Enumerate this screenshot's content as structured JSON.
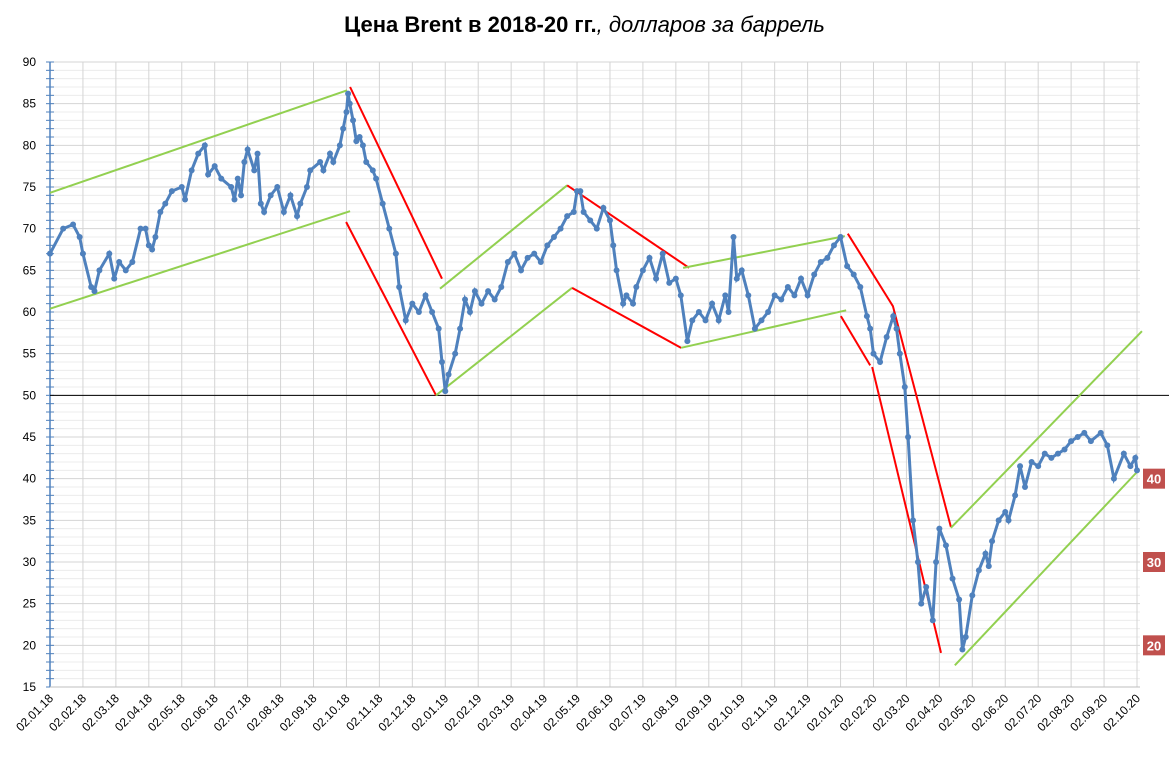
{
  "chart_data": {
    "type": "line",
    "title_bold": "Цена Brent в 2018-20 гг.",
    "title_italic": ", долларов за баррель",
    "xlabel": "",
    "ylabel": "",
    "ylim": [
      15,
      90
    ],
    "yticks": [
      15,
      20,
      25,
      30,
      35,
      40,
      45,
      50,
      55,
      60,
      65,
      70,
      75,
      80,
      85,
      90
    ],
    "x_tick_labels": [
      "02.01.18",
      "02.02.18",
      "02.03.18",
      "02.04.18",
      "02.05.18",
      "02.06.18",
      "02.07.18",
      "02.08.18",
      "02.09.18",
      "02.10.18",
      "02.11.18",
      "02.12.18",
      "02.01.19",
      "02.02.19",
      "02.03.19",
      "02.04.19",
      "02.05.19",
      "02.06.19",
      "02.07.19",
      "02.08.19",
      "02.09.19",
      "02.10.19",
      "02.11.19",
      "02.12.19",
      "02.01.20",
      "02.02.20",
      "02.03.20",
      "02.04.20",
      "02.05.20",
      "02.06.20",
      "02.07.20",
      "02.08.20",
      "02.09.20",
      "02.10.20"
    ],
    "x_unit": "months since 02.01.18",
    "grid": true,
    "series": [
      {
        "name": "Brent",
        "color": "#4f81bd",
        "points": [
          [
            0,
            67
          ],
          [
            0.4,
            70
          ],
          [
            0.7,
            70.5
          ],
          [
            0.9,
            69
          ],
          [
            1.0,
            67
          ],
          [
            1.25,
            63
          ],
          [
            1.35,
            62.5
          ],
          [
            1.5,
            65
          ],
          [
            1.8,
            67
          ],
          [
            1.95,
            64
          ],
          [
            2.1,
            66
          ],
          [
            2.3,
            65
          ],
          [
            2.5,
            66
          ],
          [
            2.75,
            70
          ],
          [
            2.9,
            70
          ],
          [
            3.0,
            68
          ],
          [
            3.1,
            67.5
          ],
          [
            3.2,
            69
          ],
          [
            3.35,
            72
          ],
          [
            3.5,
            73
          ],
          [
            3.7,
            74.5
          ],
          [
            4.0,
            75
          ],
          [
            4.1,
            73.5
          ],
          [
            4.3,
            77
          ],
          [
            4.5,
            79
          ],
          [
            4.7,
            80
          ],
          [
            4.8,
            76.5
          ],
          [
            5.0,
            77.5
          ],
          [
            5.2,
            76
          ],
          [
            5.5,
            75
          ],
          [
            5.6,
            73.5
          ],
          [
            5.7,
            76
          ],
          [
            5.8,
            74
          ],
          [
            5.9,
            78
          ],
          [
            6.0,
            79.5
          ],
          [
            6.2,
            77
          ],
          [
            6.3,
            79
          ],
          [
            6.4,
            73
          ],
          [
            6.5,
            72
          ],
          [
            6.7,
            74
          ],
          [
            6.9,
            75
          ],
          [
            7.1,
            72
          ],
          [
            7.3,
            74
          ],
          [
            7.5,
            71.5
          ],
          [
            7.6,
            73
          ],
          [
            7.8,
            75
          ],
          [
            7.9,
            77
          ],
          [
            8.2,
            78
          ],
          [
            8.3,
            77
          ],
          [
            8.5,
            79
          ],
          [
            8.6,
            78
          ],
          [
            8.8,
            80
          ],
          [
            8.9,
            82
          ],
          [
            9.0,
            84
          ],
          [
            9.05,
            86.2
          ],
          [
            9.1,
            85
          ],
          [
            9.2,
            83
          ],
          [
            9.3,
            80.5
          ],
          [
            9.4,
            81
          ],
          [
            9.5,
            80
          ],
          [
            9.6,
            78
          ],
          [
            9.8,
            77
          ],
          [
            9.9,
            76
          ],
          [
            10.1,
            73
          ],
          [
            10.3,
            70
          ],
          [
            10.5,
            67
          ],
          [
            10.6,
            63
          ],
          [
            10.8,
            59
          ],
          [
            11.0,
            61
          ],
          [
            11.2,
            60
          ],
          [
            11.4,
            62
          ],
          [
            11.6,
            60
          ],
          [
            11.8,
            58
          ],
          [
            11.9,
            54
          ],
          [
            12.0,
            50.5
          ],
          [
            12.1,
            52.5
          ],
          [
            12.3,
            55
          ],
          [
            12.45,
            58
          ],
          [
            12.6,
            61.5
          ],
          [
            12.75,
            60
          ],
          [
            12.9,
            62.5
          ],
          [
            13.1,
            61
          ],
          [
            13.3,
            62.5
          ],
          [
            13.5,
            61.5
          ],
          [
            13.7,
            63
          ],
          [
            13.9,
            66
          ],
          [
            14.1,
            67
          ],
          [
            14.3,
            65
          ],
          [
            14.5,
            66.5
          ],
          [
            14.7,
            67
          ],
          [
            14.9,
            66
          ],
          [
            15.1,
            68
          ],
          [
            15.3,
            69
          ],
          [
            15.5,
            70
          ],
          [
            15.7,
            71.5
          ],
          [
            15.9,
            72
          ],
          [
            16.0,
            74.5
          ],
          [
            16.1,
            74.5
          ],
          [
            16.2,
            72
          ],
          [
            16.4,
            71
          ],
          [
            16.6,
            70
          ],
          [
            16.8,
            72.5
          ],
          [
            17.0,
            71
          ],
          [
            17.1,
            68
          ],
          [
            17.2,
            65
          ],
          [
            17.4,
            61
          ],
          [
            17.5,
            62
          ],
          [
            17.7,
            61
          ],
          [
            17.8,
            63
          ],
          [
            18.0,
            65
          ],
          [
            18.2,
            66.5
          ],
          [
            18.4,
            64
          ],
          [
            18.6,
            67
          ],
          [
            18.8,
            63.5
          ],
          [
            19.0,
            64
          ],
          [
            19.15,
            62
          ],
          [
            19.35,
            56.5
          ],
          [
            19.5,
            59
          ],
          [
            19.7,
            60
          ],
          [
            19.9,
            59
          ],
          [
            20.1,
            61
          ],
          [
            20.3,
            59
          ],
          [
            20.5,
            62
          ],
          [
            20.6,
            60
          ],
          [
            20.75,
            69
          ],
          [
            20.85,
            64
          ],
          [
            21.0,
            65
          ],
          [
            21.2,
            62
          ],
          [
            21.4,
            58
          ],
          [
            21.6,
            59
          ],
          [
            21.8,
            60
          ],
          [
            22.0,
            62
          ],
          [
            22.2,
            61.5
          ],
          [
            22.4,
            63
          ],
          [
            22.6,
            62
          ],
          [
            22.8,
            64
          ],
          [
            23.0,
            62
          ],
          [
            23.2,
            64.5
          ],
          [
            23.4,
            66
          ],
          [
            23.6,
            66.5
          ],
          [
            23.8,
            68
          ],
          [
            24.0,
            69
          ],
          [
            24.2,
            65.5
          ],
          [
            24.4,
            64.5
          ],
          [
            24.6,
            63
          ],
          [
            24.8,
            59.5
          ],
          [
            24.9,
            58
          ],
          [
            25.0,
            55
          ],
          [
            25.2,
            54
          ],
          [
            25.4,
            57
          ],
          [
            25.6,
            59.5
          ],
          [
            25.7,
            58
          ],
          [
            25.8,
            55
          ],
          [
            25.95,
            51
          ],
          [
            26.05,
            45
          ],
          [
            26.2,
            35
          ],
          [
            26.35,
            30
          ],
          [
            26.45,
            25
          ],
          [
            26.6,
            27
          ],
          [
            26.8,
            23
          ],
          [
            26.9,
            30
          ],
          [
            27.0,
            34
          ],
          [
            27.2,
            32
          ],
          [
            27.4,
            28
          ],
          [
            27.6,
            25.5
          ],
          [
            27.7,
            19.5
          ],
          [
            27.8,
            21
          ],
          [
            28.0,
            26
          ],
          [
            28.2,
            29
          ],
          [
            28.4,
            31
          ],
          [
            28.5,
            29.5
          ],
          [
            28.6,
            32.5
          ],
          [
            28.8,
            35
          ],
          [
            29.0,
            36
          ],
          [
            29.1,
            35
          ],
          [
            29.3,
            38
          ],
          [
            29.45,
            41.5
          ],
          [
            29.6,
            39
          ],
          [
            29.8,
            42
          ],
          [
            30.0,
            41.5
          ],
          [
            30.2,
            43
          ],
          [
            30.4,
            42.5
          ],
          [
            30.6,
            43
          ],
          [
            30.8,
            43.5
          ],
          [
            31.0,
            44.5
          ],
          [
            31.2,
            45
          ],
          [
            31.4,
            45.5
          ],
          [
            31.6,
            44.5
          ],
          [
            31.9,
            45.5
          ],
          [
            32.1,
            44
          ],
          [
            32.3,
            40
          ],
          [
            32.6,
            43
          ],
          [
            32.8,
            41.5
          ],
          [
            32.95,
            42.5
          ],
          [
            33.0,
            41
          ]
        ]
      }
    ],
    "trend_lines": [
      {
        "color": "#92d050",
        "points": [
          [
            0,
            74.3
          ],
          [
            9.02,
            86.6
          ]
        ]
      },
      {
        "color": "#92d050",
        "points": [
          [
            0,
            60.4
          ],
          [
            9.11,
            72.1
          ]
        ]
      },
      {
        "color": "#ff0000",
        "points": [
          [
            9.11,
            87
          ],
          [
            11.9,
            64
          ]
        ]
      },
      {
        "color": "#ff0000",
        "points": [
          [
            8.99,
            70.8
          ],
          [
            11.72,
            50
          ]
        ]
      },
      {
        "color": "#92d050",
        "points": [
          [
            11.84,
            62.8
          ],
          [
            15.7,
            75.2
          ]
        ]
      },
      {
        "color": "#92d050",
        "points": [
          [
            11.72,
            50
          ],
          [
            15.85,
            62.9
          ]
        ]
      },
      {
        "color": "#ff0000",
        "points": [
          [
            15.7,
            75.2
          ],
          [
            19.4,
            65.3
          ]
        ]
      },
      {
        "color": "#ff0000",
        "points": [
          [
            15.85,
            62.9
          ],
          [
            19.16,
            55.7
          ]
        ]
      },
      {
        "color": "#92d050",
        "points": [
          [
            19.22,
            65.3
          ],
          [
            24.13,
            69.1
          ]
        ]
      },
      {
        "color": "#92d050",
        "points": [
          [
            19.16,
            55.7
          ],
          [
            24.17,
            60.2
          ]
        ]
      },
      {
        "color": "#ff0000",
        "points": [
          [
            24.22,
            69.4
          ],
          [
            25.59,
            60.7
          ],
          [
            27.35,
            34.2
          ]
        ]
      },
      {
        "color": "#ff0000",
        "points": [
          [
            24.01,
            59.5
          ],
          [
            24.9,
            53.6
          ]
        ]
      },
      {
        "color": "#ff0000",
        "points": [
          [
            24.96,
            53.4
          ],
          [
            27.05,
            19.1
          ]
        ]
      },
      {
        "color": "#92d050",
        "points": [
          [
            27.35,
            34.1
          ],
          [
            33.15,
            57.7
          ]
        ]
      },
      {
        "color": "#92d050",
        "points": [
          [
            27.47,
            17.6
          ],
          [
            33,
            40.8
          ]
        ]
      }
    ],
    "reference_line": {
      "value": 50,
      "color": "#000000"
    },
    "level_badges": [
      {
        "label": "40",
        "value": 40
      },
      {
        "label": "30",
        "value": 30
      },
      {
        "label": "20",
        "value": 20
      }
    ],
    "badge_color": "#c0504d"
  }
}
